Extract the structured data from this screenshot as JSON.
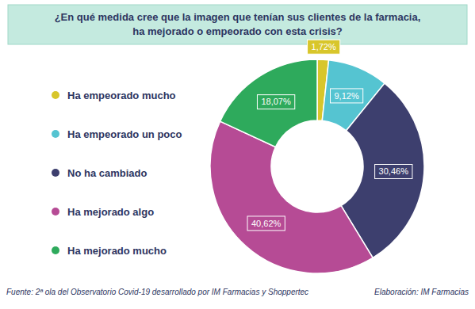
{
  "chart_data": {
    "type": "pie",
    "title": "¿En qué medida cree que la imagen que tenían sus clientes de la farmacia,\nha mejorado o empeorado con esta crisis?",
    "categories": [
      "Ha empeorado mucho",
      "Ha empeorado un poco",
      "No ha cambiado",
      "Ha mejorado algo",
      "Ha mejorado mucho"
    ],
    "values": [
      1.72,
      9.12,
      30.46,
      40.62,
      18.07
    ],
    "value_labels": [
      "1,72%",
      "9,12%",
      "30,46%",
      "40,62%",
      "18,07%"
    ],
    "colors": [
      "#d8c62b",
      "#55c4d1",
      "#3d3f6e",
      "#b64b95",
      "#2eaa5c"
    ],
    "data_labels": true,
    "legend": "left",
    "annotations": [
      "Fuente: 2ª ola del Observatorio Covid-19 desarrollado por IM Farmacias y Shoppertec",
      "Elaboración: IM Farmacias"
    ]
  }
}
